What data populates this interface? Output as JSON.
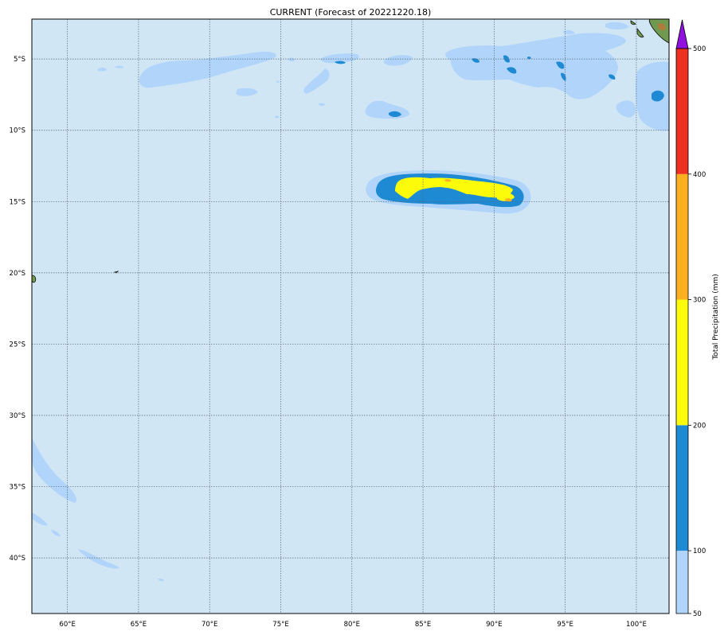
{
  "title": "CURRENT (Forecast of 20221220.18)",
  "colorbar": {
    "label": "Total Precipitation (mm)",
    "ticks": [
      "50",
      "100",
      "200",
      "300",
      "400",
      "500"
    ],
    "levels": [
      {
        "from": 50,
        "to": 100,
        "color": "#b0d4fa"
      },
      {
        "from": 100,
        "to": 200,
        "color": "#1e8ad4"
      },
      {
        "from": 200,
        "to": 300,
        "color": "#fcfc0a"
      },
      {
        "from": 300,
        "to": 400,
        "color": "#fcb020"
      },
      {
        "from": 400,
        "to": 500,
        "color": "#ee3020"
      }
    ],
    "extend_max_color": "#9010e0"
  },
  "map": {
    "ocean_color": "#d0e6f5",
    "lon_labels": [
      "60°E",
      "65°E",
      "70°E",
      "75°E",
      "80°E",
      "85°E",
      "90°E",
      "95°E",
      "100°E"
    ],
    "lat_labels": [
      "5°S",
      "10°S",
      "15°S",
      "20°S",
      "25°S",
      "30°S",
      "35°S",
      "40°S"
    ],
    "lon_range": [
      57.5,
      102.3
    ],
    "lat_range": [
      -43.9,
      -2.2
    ],
    "gridlines": true
  }
}
